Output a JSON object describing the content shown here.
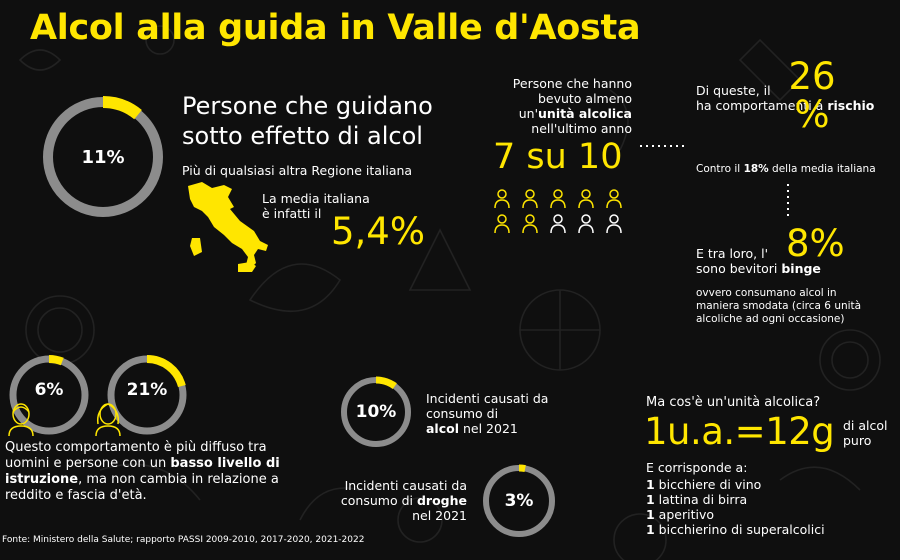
{
  "title": "Alcol alla guida in Valle d'Aosta",
  "colors": {
    "accent": "#ffe600",
    "ring_track": "#8c8c8c",
    "background": "#0f0f0f"
  },
  "main_stat": {
    "ring_value": 11,
    "ring_label": "11%",
    "headline_line1": "Persone che guidano",
    "headline_line2": "sotto effetto di alcol",
    "more_than": "Più di qualsiasi altra Regione italiana",
    "avg_line1": "La media italiana",
    "avg_line2": "è infatti il",
    "avg_value": "5,4%",
    "map_icon": "italy-map-icon"
  },
  "drinkers": {
    "line1": "Persone che hanno",
    "line2": "bevuto almeno",
    "line3_pre": "un'",
    "line3_bold": "unità alcolica",
    "line4": "nell'ultimo anno",
    "value": "7 su 10",
    "filled_icons": 7,
    "total_icons": 10,
    "icon": "person-icon"
  },
  "risk": {
    "line1": "Di queste, il",
    "line2_pre": "ha comportamenti a ",
    "line2_bold": "rischio",
    "value_num": "26",
    "value_pct": "%",
    "vs_pre": "Contro il ",
    "vs_bold": "18%",
    "vs_post": " della media italiana"
  },
  "binge": {
    "line1": "E tra loro, l'",
    "line2_pre": "sono bevitori ",
    "line2_bold": "binge",
    "value": "8%",
    "desc_line1": "ovvero consumano alcol in",
    "desc_line2": "maniera smodata (circa 6 unità",
    "desc_line3": "alcoliche ad ogni occasione)"
  },
  "gap": {
    "men_ring_value": 6,
    "men_ring_label": "6%",
    "men_icon": "man-icon",
    "women_ring_value": 21,
    "women_ring_label": "21%",
    "women_icon": "woman-icon",
    "line1": "Questo comportamento è più diffuso tra",
    "line2_pre": "uomini e persone con un ",
    "line2_bold": "basso livello di",
    "line3_bold": "istruzione",
    "line3_post": ", ma non cambia in relazione a",
    "line4": "reddito e fascia d'età."
  },
  "accidents": {
    "alcol_ring_value": 10,
    "alcol_ring_label": "10%",
    "alcol_line1": "Incidenti causati da",
    "alcol_line2": "consumo di",
    "alcol_line3_bold": "alcol",
    "alcol_line3_post": " nel 2021",
    "droghe_ring_value": 3,
    "droghe_ring_label": "3%",
    "droghe_line1": "Incidenti causati da",
    "droghe_line2_pre": "consumo di ",
    "droghe_line2_bold": "droghe",
    "droghe_line3": "nel 2021"
  },
  "unit": {
    "question": "Ma cos'è un'unità alcolica?",
    "formula": "1u.a.=12g",
    "suffix_line1": "di alcol",
    "suffix_line2": "puro",
    "equiv_title": "E corrisponde a:",
    "items": [
      {
        "qty": "1",
        "text": " bicchiere di vino"
      },
      {
        "qty": "1",
        "text": " lattina di birra"
      },
      {
        "qty": "1",
        "text": " aperitivo"
      },
      {
        "qty": "1",
        "text": " bicchierino di superalcolici"
      }
    ]
  },
  "source": "Fonte: Ministero della Salute; rapporto PASSI 2009-2010, 2017-2020, 2021-2022"
}
